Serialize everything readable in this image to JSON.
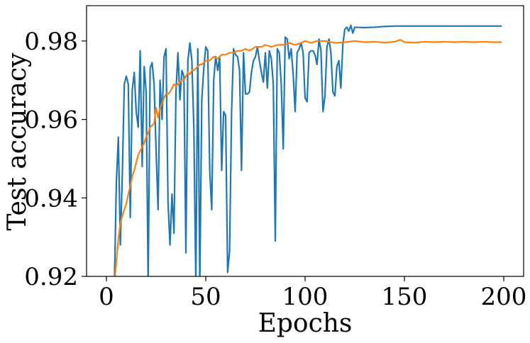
{
  "chart_data": {
    "type": "line",
    "title": "",
    "xlabel": "Epochs",
    "ylabel": "Test accuracy",
    "xlim": [
      -10,
      210
    ],
    "ylim": [
      0.92,
      0.989
    ],
    "xticks": [
      0,
      50,
      100,
      150,
      200
    ],
    "xtick_labels": [
      "0",
      "50",
      "100",
      "150",
      "200"
    ],
    "yticks": [
      0.92,
      0.94,
      0.96,
      0.98
    ],
    "ytick_labels": [
      "0.92",
      "0.94",
      "0.96",
      "0.98"
    ],
    "grid": false,
    "legend": "none",
    "series": [
      {
        "name": "series-blue",
        "color": "#1f77b4",
        "points": [
          [
            4,
            0.918
          ],
          [
            5,
            0.944
          ],
          [
            6,
            0.9555
          ],
          [
            7,
            0.928
          ],
          [
            8,
            0.946
          ],
          [
            9,
            0.969
          ],
          [
            10,
            0.971
          ],
          [
            11,
            0.969
          ],
          [
            12,
            0.935
          ],
          [
            13,
            0.9675
          ],
          [
            14,
            0.972
          ],
          [
            15,
            0.962
          ],
          [
            16,
            0.958
          ],
          [
            17,
            0.9775
          ],
          [
            18,
            0.948
          ],
          [
            19,
            0.9735
          ],
          [
            20,
            0.967
          ],
          [
            21,
            0.918
          ],
          [
            22,
            0.973
          ],
          [
            23,
            0.9745
          ],
          [
            24,
            0.969
          ],
          [
            25,
            0.952
          ],
          [
            26,
            0.937
          ],
          [
            27,
            0.97
          ],
          [
            28,
            0.96
          ],
          [
            29,
            0.976
          ],
          [
            30,
            0.978
          ],
          [
            31,
            0.939
          ],
          [
            32,
            0.928
          ],
          [
            33,
            0.941
          ],
          [
            34,
            0.931
          ],
          [
            35,
            0.967
          ],
          [
            36,
            0.977
          ],
          [
            37,
            0.965
          ],
          [
            38,
            0.9725
          ],
          [
            39,
            0.971
          ],
          [
            40,
            0.926
          ],
          [
            41,
            0.975
          ],
          [
            42,
            0.9795
          ],
          [
            43,
            0.975
          ],
          [
            44,
            0.958
          ],
          [
            45,
            0.918
          ],
          [
            46,
            0.978
          ],
          [
            47,
            0.918
          ],
          [
            48,
            0.965
          ],
          [
            49,
            0.973
          ],
          [
            50,
            0.9785
          ],
          [
            51,
            0.9775
          ],
          [
            52,
            0.947
          ],
          [
            53,
            0.937
          ],
          [
            54,
            0.97
          ],
          [
            55,
            0.976
          ],
          [
            56,
            0.9725
          ],
          [
            57,
            0.976
          ],
          [
            58,
            0.947
          ],
          [
            59,
            0.962
          ],
          [
            60,
            0.961
          ],
          [
            61,
            0.921
          ],
          [
            62,
            0.9265
          ],
          [
            63,
            0.962
          ],
          [
            64,
            0.978
          ],
          [
            65,
            0.9765
          ],
          [
            66,
            0.976
          ],
          [
            67,
            0.9725
          ],
          [
            68,
            0.947
          ],
          [
            69,
            0.977
          ],
          [
            70,
            0.9665
          ],
          [
            71,
            0.9665
          ],
          [
            72,
            0.967
          ],
          [
            73,
            0.972
          ],
          [
            74,
            0.975
          ],
          [
            75,
            0.976
          ],
          [
            76,
            0.9785
          ],
          [
            77,
            0.975
          ],
          [
            78,
            0.972
          ],
          [
            79,
            0.9695
          ],
          [
            80,
            0.977
          ],
          [
            81,
            0.968
          ],
          [
            82,
            0.9775
          ],
          [
            83,
            0.9755
          ],
          [
            84,
            0.969
          ],
          [
            85,
            0.929
          ],
          [
            86,
            0.978
          ],
          [
            87,
            0.977
          ],
          [
            88,
            0.969
          ],
          [
            89,
            0.9525
          ],
          [
            90,
            0.981
          ],
          [
            91,
            0.9805
          ],
          [
            92,
            0.9755
          ],
          [
            93,
            0.978
          ],
          [
            94,
            0.9715
          ],
          [
            95,
            0.962
          ],
          [
            96,
            0.977
          ],
          [
            97,
            0.978
          ],
          [
            98,
            0.9795
          ],
          [
            99,
            0.977
          ],
          [
            100,
            0.9655
          ],
          [
            101,
            0.9645
          ],
          [
            102,
            0.977
          ],
          [
            103,
            0.9775
          ],
          [
            104,
            0.9775
          ],
          [
            105,
            0.9765
          ],
          [
            106,
            0.974
          ],
          [
            107,
            0.9805
          ],
          [
            108,
            0.9775
          ],
          [
            109,
            0.962
          ],
          [
            110,
            0.966
          ],
          [
            111,
            0.9785
          ],
          [
            112,
            0.9805
          ],
          [
            113,
            0.977
          ],
          [
            114,
            0.967
          ],
          [
            115,
            0.966
          ],
          [
            116,
            0.9735
          ],
          [
            117,
            0.975
          ],
          [
            118,
            0.968
          ],
          [
            119,
            0.979
          ],
          [
            120,
            0.983
          ],
          [
            121,
            0.9835
          ],
          [
            122,
            0.9825
          ],
          [
            123,
            0.984
          ],
          [
            124,
            0.982
          ],
          [
            125,
            0.9835
          ],
          [
            130,
            0.9834
          ],
          [
            135,
            0.9835
          ],
          [
            140,
            0.9837
          ],
          [
            145,
            0.9838
          ],
          [
            150,
            0.9838
          ],
          [
            160,
            0.9838
          ],
          [
            170,
            0.9838
          ],
          [
            180,
            0.9838
          ],
          [
            190,
            0.9838
          ],
          [
            199,
            0.9838
          ]
        ]
      },
      {
        "name": "series-orange",
        "color": "#ff7f0e",
        "points": [
          [
            4,
            0.918
          ],
          [
            5,
            0.924
          ],
          [
            6,
            0.9295
          ],
          [
            7,
            0.9335
          ],
          [
            8,
            0.9355
          ],
          [
            9,
            0.937
          ],
          [
            10,
            0.9385
          ],
          [
            11,
            0.941
          ],
          [
            12,
            0.943
          ],
          [
            13,
            0.9455
          ],
          [
            14,
            0.947
          ],
          [
            15,
            0.949
          ],
          [
            16,
            0.951
          ],
          [
            17,
            0.952
          ],
          [
            18,
            0.953
          ],
          [
            19,
            0.954
          ],
          [
            20,
            0.9555
          ],
          [
            21,
            0.9565
          ],
          [
            22,
            0.958
          ],
          [
            23,
            0.9585
          ],
          [
            24,
            0.959
          ],
          [
            25,
            0.963
          ],
          [
            26,
            0.9605
          ],
          [
            27,
            0.963
          ],
          [
            28,
            0.964
          ],
          [
            29,
            0.9655
          ],
          [
            30,
            0.9665
          ],
          [
            31,
            0.9665
          ],
          [
            32,
            0.967
          ],
          [
            33,
            0.968
          ],
          [
            34,
            0.969
          ],
          [
            35,
            0.9685
          ],
          [
            36,
            0.969
          ],
          [
            37,
            0.9695
          ],
          [
            38,
            0.97
          ],
          [
            39,
            0.97
          ],
          [
            40,
            0.971
          ],
          [
            41,
            0.972
          ],
          [
            42,
            0.9715
          ],
          [
            43,
            0.9725
          ],
          [
            44,
            0.9725
          ],
          [
            45,
            0.973
          ],
          [
            46,
            0.9735
          ],
          [
            47,
            0.974
          ],
          [
            48,
            0.974
          ],
          [
            49,
            0.9745
          ],
          [
            50,
            0.975
          ],
          [
            52,
            0.975
          ],
          [
            54,
            0.976
          ],
          [
            56,
            0.9755
          ],
          [
            58,
            0.9765
          ],
          [
            60,
            0.9765
          ],
          [
            62,
            0.977
          ],
          [
            64,
            0.977
          ],
          [
            66,
            0.9775
          ],
          [
            68,
            0.9775
          ],
          [
            70,
            0.978
          ],
          [
            72,
            0.9775
          ],
          [
            75,
            0.9785
          ],
          [
            78,
            0.9785
          ],
          [
            80,
            0.979
          ],
          [
            83,
            0.9785
          ],
          [
            86,
            0.979
          ],
          [
            89,
            0.979
          ],
          [
            92,
            0.9795
          ],
          [
            95,
            0.979
          ],
          [
            98,
            0.9795
          ],
          [
            100,
            0.98
          ],
          [
            103,
            0.9795
          ],
          [
            106,
            0.98
          ],
          [
            110,
            0.98
          ],
          [
            115,
            0.9795
          ],
          [
            120,
            0.9797
          ],
          [
            125,
            0.98
          ],
          [
            130,
            0.9797
          ],
          [
            135,
            0.9798
          ],
          [
            140,
            0.9796
          ],
          [
            145,
            0.9798
          ],
          [
            148,
            0.9803
          ],
          [
            150,
            0.9797
          ],
          [
            155,
            0.9796
          ],
          [
            160,
            0.9798
          ],
          [
            165,
            0.9797
          ],
          [
            170,
            0.9798
          ],
          [
            175,
            0.9797
          ],
          [
            180,
            0.9798
          ],
          [
            185,
            0.9797
          ],
          [
            190,
            0.9798
          ],
          [
            195,
            0.9797
          ],
          [
            199,
            0.9797
          ]
        ]
      }
    ]
  }
}
